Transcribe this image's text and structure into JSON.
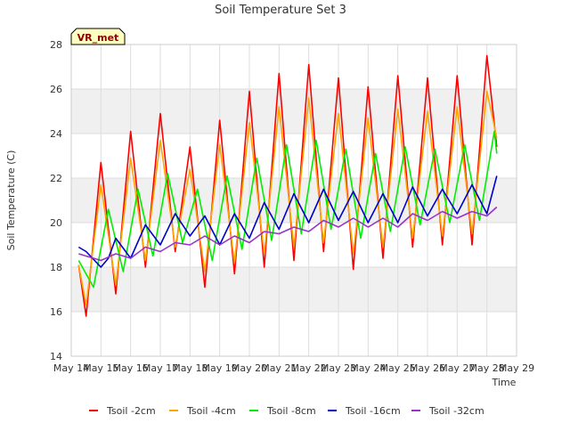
{
  "chart_data": {
    "type": "line",
    "title": "Soil Temperature Set 3",
    "xlabel": "Time",
    "ylabel": "Soil Temperature (C)",
    "site_badge": "VR_met",
    "xlim": [
      "2024-05-14",
      "2024-05-29"
    ],
    "ylim": [
      14,
      28
    ],
    "x_ticks": [
      "May 14",
      "May 15",
      "May 16",
      "May 17",
      "May 18",
      "May 19",
      "May 20",
      "May 21",
      "May 22",
      "May 23",
      "May 24",
      "May 25",
      "May 26",
      "May 27",
      "May 28",
      "May 29"
    ],
    "y_ticks": [
      14,
      16,
      18,
      20,
      22,
      24,
      26,
      28
    ],
    "grid": true,
    "legend_position": "bottom",
    "series": [
      {
        "name": "Tsoil -2cm",
        "color": "#ff0000",
        "points": [
          [
            "2024-05-14 06:00",
            18.1
          ],
          [
            "2024-05-14 12:00",
            15.8
          ],
          [
            "2024-05-15 00:00",
            22.7
          ],
          [
            "2024-05-15 12:00",
            16.8
          ],
          [
            "2024-05-16 00:00",
            24.1
          ],
          [
            "2024-05-16 12:00",
            18.0
          ],
          [
            "2024-05-17 00:00",
            24.9
          ],
          [
            "2024-05-17 12:00",
            18.7
          ],
          [
            "2024-05-18 00:00",
            23.4
          ],
          [
            "2024-05-18 12:00",
            17.1
          ],
          [
            "2024-05-19 00:00",
            24.6
          ],
          [
            "2024-05-19 12:00",
            17.7
          ],
          [
            "2024-05-20 00:00",
            25.9
          ],
          [
            "2024-05-20 12:00",
            18.0
          ],
          [
            "2024-05-21 00:00",
            26.7
          ],
          [
            "2024-05-21 12:00",
            18.3
          ],
          [
            "2024-05-22 00:00",
            27.1
          ],
          [
            "2024-05-22 12:00",
            18.7
          ],
          [
            "2024-05-23 00:00",
            26.5
          ],
          [
            "2024-05-23 12:00",
            17.9
          ],
          [
            "2024-05-24 00:00",
            26.1
          ],
          [
            "2024-05-24 12:00",
            18.4
          ],
          [
            "2024-05-25 00:00",
            26.6
          ],
          [
            "2024-05-25 12:00",
            18.9
          ],
          [
            "2024-05-26 00:00",
            26.5
          ],
          [
            "2024-05-26 12:00",
            19.0
          ],
          [
            "2024-05-27 00:00",
            26.6
          ],
          [
            "2024-05-27 12:00",
            19.0
          ],
          [
            "2024-05-28 00:00",
            27.5
          ],
          [
            "2024-05-28 08:00",
            23.4
          ]
        ]
      },
      {
        "name": "Tsoil -4cm",
        "color": "#ffa500",
        "points": [
          [
            "2024-05-14 06:00",
            18.1
          ],
          [
            "2024-05-14 12:00",
            16.3
          ],
          [
            "2024-05-15 00:00",
            21.7
          ],
          [
            "2024-05-15 12:00",
            17.2
          ],
          [
            "2024-05-16 00:00",
            22.9
          ],
          [
            "2024-05-16 12:00",
            18.3
          ],
          [
            "2024-05-17 00:00",
            23.7
          ],
          [
            "2024-05-17 12:00",
            18.9
          ],
          [
            "2024-05-18 00:00",
            22.4
          ],
          [
            "2024-05-18 12:00",
            17.8
          ],
          [
            "2024-05-19 00:00",
            23.5
          ],
          [
            "2024-05-19 12:00",
            18.2
          ],
          [
            "2024-05-20 00:00",
            24.5
          ],
          [
            "2024-05-20 12:00",
            18.6
          ],
          [
            "2024-05-21 00:00",
            25.2
          ],
          [
            "2024-05-21 12:00",
            18.9
          ],
          [
            "2024-05-22 00:00",
            25.6
          ],
          [
            "2024-05-22 12:00",
            19.1
          ],
          [
            "2024-05-23 00:00",
            24.9
          ],
          [
            "2024-05-23 12:00",
            18.6
          ],
          [
            "2024-05-24 00:00",
            24.7
          ],
          [
            "2024-05-24 12:00",
            18.9
          ],
          [
            "2024-05-25 00:00",
            25.1
          ],
          [
            "2024-05-25 12:00",
            19.3
          ],
          [
            "2024-05-26 00:00",
            25.0
          ],
          [
            "2024-05-26 12:00",
            19.4
          ],
          [
            "2024-05-27 00:00",
            25.2
          ],
          [
            "2024-05-27 12:00",
            19.5
          ],
          [
            "2024-05-28 00:00",
            25.9
          ],
          [
            "2024-05-28 08:00",
            23.8
          ]
        ]
      },
      {
        "name": "Tsoil -8cm",
        "color": "#00ee00",
        "points": [
          [
            "2024-05-14 06:00",
            18.3
          ],
          [
            "2024-05-14 18:00",
            17.1
          ],
          [
            "2024-05-15 06:00",
            20.6
          ],
          [
            "2024-05-15 18:00",
            17.8
          ],
          [
            "2024-05-16 06:00",
            21.5
          ],
          [
            "2024-05-16 18:00",
            18.5
          ],
          [
            "2024-05-17 06:00",
            22.2
          ],
          [
            "2024-05-17 18:00",
            19.1
          ],
          [
            "2024-05-18 06:00",
            21.5
          ],
          [
            "2024-05-18 18:00",
            18.3
          ],
          [
            "2024-05-19 06:00",
            22.1
          ],
          [
            "2024-05-19 18:00",
            18.8
          ],
          [
            "2024-05-20 06:00",
            22.9
          ],
          [
            "2024-05-20 18:00",
            19.2
          ],
          [
            "2024-05-21 06:00",
            23.5
          ],
          [
            "2024-05-21 18:00",
            19.5
          ],
          [
            "2024-05-22 06:00",
            23.7
          ],
          [
            "2024-05-22 18:00",
            19.7
          ],
          [
            "2024-05-23 06:00",
            23.3
          ],
          [
            "2024-05-23 18:00",
            19.3
          ],
          [
            "2024-05-24 06:00",
            23.1
          ],
          [
            "2024-05-24 18:00",
            19.6
          ],
          [
            "2024-05-25 06:00",
            23.4
          ],
          [
            "2024-05-25 18:00",
            19.9
          ],
          [
            "2024-05-26 06:00",
            23.3
          ],
          [
            "2024-05-26 18:00",
            20.0
          ],
          [
            "2024-05-27 06:00",
            23.5
          ],
          [
            "2024-05-27 18:00",
            20.1
          ],
          [
            "2024-05-28 06:00",
            24.1
          ],
          [
            "2024-05-28 08:00",
            23.1
          ]
        ]
      },
      {
        "name": "Tsoil -16cm",
        "color": "#0000cc",
        "points": [
          [
            "2024-05-14 06:00",
            18.9
          ],
          [
            "2024-05-14 12:00",
            18.7
          ],
          [
            "2024-05-15 00:00",
            18.0
          ],
          [
            "2024-05-15 06:00",
            18.4
          ],
          [
            "2024-05-15 12:00",
            19.3
          ],
          [
            "2024-05-16 00:00",
            18.4
          ],
          [
            "2024-05-16 12:00",
            19.9
          ],
          [
            "2024-05-17 00:00",
            19.0
          ],
          [
            "2024-05-17 12:00",
            20.4
          ],
          [
            "2024-05-18 00:00",
            19.4
          ],
          [
            "2024-05-18 12:00",
            20.3
          ],
          [
            "2024-05-19 00:00",
            19.0
          ],
          [
            "2024-05-19 12:00",
            20.4
          ],
          [
            "2024-05-20 00:00",
            19.3
          ],
          [
            "2024-05-20 12:00",
            20.9
          ],
          [
            "2024-05-21 00:00",
            19.7
          ],
          [
            "2024-05-21 12:00",
            21.3
          ],
          [
            "2024-05-22 00:00",
            20.0
          ],
          [
            "2024-05-22 12:00",
            21.5
          ],
          [
            "2024-05-23 00:00",
            20.1
          ],
          [
            "2024-05-23 12:00",
            21.4
          ],
          [
            "2024-05-24 00:00",
            20.0
          ],
          [
            "2024-05-24 12:00",
            21.3
          ],
          [
            "2024-05-25 00:00",
            20.0
          ],
          [
            "2024-05-25 12:00",
            21.6
          ],
          [
            "2024-05-26 00:00",
            20.3
          ],
          [
            "2024-05-26 12:00",
            21.5
          ],
          [
            "2024-05-27 00:00",
            20.4
          ],
          [
            "2024-05-27 12:00",
            21.7
          ],
          [
            "2024-05-28 00:00",
            20.4
          ],
          [
            "2024-05-28 08:00",
            22.1
          ]
        ]
      },
      {
        "name": "Tsoil -32cm",
        "color": "#9932cc",
        "points": [
          [
            "2024-05-14 06:00",
            18.6
          ],
          [
            "2024-05-15 00:00",
            18.3
          ],
          [
            "2024-05-15 12:00",
            18.6
          ],
          [
            "2024-05-16 00:00",
            18.4
          ],
          [
            "2024-05-16 12:00",
            18.9
          ],
          [
            "2024-05-17 00:00",
            18.7
          ],
          [
            "2024-05-17 12:00",
            19.1
          ],
          [
            "2024-05-18 00:00",
            19.0
          ],
          [
            "2024-05-18 12:00",
            19.4
          ],
          [
            "2024-05-19 00:00",
            19.0
          ],
          [
            "2024-05-19 12:00",
            19.4
          ],
          [
            "2024-05-20 00:00",
            19.1
          ],
          [
            "2024-05-20 12:00",
            19.6
          ],
          [
            "2024-05-21 00:00",
            19.5
          ],
          [
            "2024-05-21 12:00",
            19.8
          ],
          [
            "2024-05-22 00:00",
            19.6
          ],
          [
            "2024-05-22 12:00",
            20.1
          ],
          [
            "2024-05-23 00:00",
            19.8
          ],
          [
            "2024-05-23 12:00",
            20.2
          ],
          [
            "2024-05-24 00:00",
            19.8
          ],
          [
            "2024-05-24 12:00",
            20.2
          ],
          [
            "2024-05-25 00:00",
            19.8
          ],
          [
            "2024-05-25 12:00",
            20.4
          ],
          [
            "2024-05-26 00:00",
            20.1
          ],
          [
            "2024-05-26 12:00",
            20.5
          ],
          [
            "2024-05-27 00:00",
            20.2
          ],
          [
            "2024-05-27 12:00",
            20.5
          ],
          [
            "2024-05-28 00:00",
            20.3
          ],
          [
            "2024-05-28 08:00",
            20.7
          ]
        ]
      }
    ]
  }
}
